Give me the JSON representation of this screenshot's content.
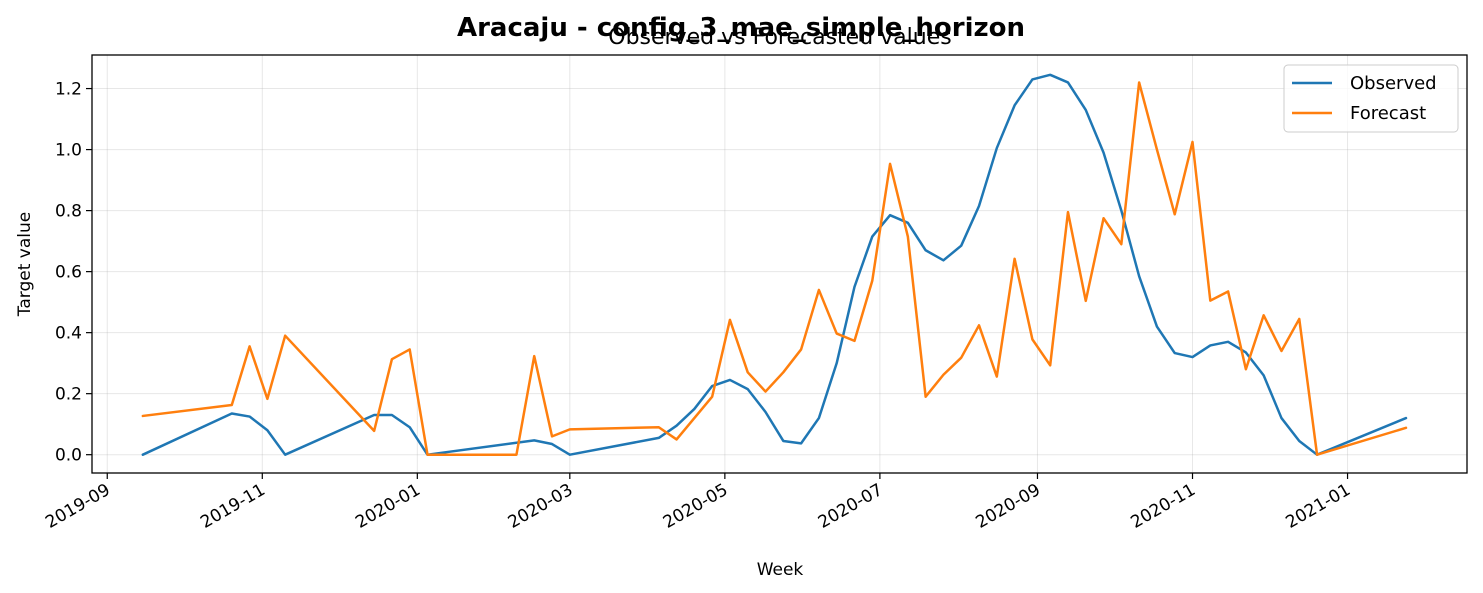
{
  "chart_data": {
    "type": "line",
    "title": "Aracaju - config_3_mae_simple_horizon",
    "subtitle": "Observed vs Forecasted values",
    "xlabel": "Week",
    "ylabel": "Target value",
    "x_tick_labels": [
      "2019-09",
      "2019-11",
      "2020-01",
      "2020-03",
      "2020-05",
      "2020-07",
      "2020-09",
      "2020-11",
      "2021-01"
    ],
    "x_ticks": [
      "2019-09-01",
      "2019-11-01",
      "2020-01-01",
      "2020-03-01",
      "2020-05-01",
      "2020-07-01",
      "2020-09-01",
      "2020-11-01",
      "2021-01-01"
    ],
    "xlim": [
      "2019-08-26",
      "2021-02-17"
    ],
    "y_ticks": [
      0.0,
      0.2,
      0.4,
      0.6,
      0.8,
      1.0,
      1.2
    ],
    "y_tick_labels": [
      "0.0",
      "0.2",
      "0.4",
      "0.6",
      "0.8",
      "1.0",
      "1.2"
    ],
    "ylim": [
      -0.06,
      1.31
    ],
    "grid": true,
    "legend_position": "top-right",
    "series": [
      {
        "name": "Observed",
        "color": "#1f77b4",
        "points": [
          [
            "2019-09-15",
            0.0
          ],
          [
            "2019-10-20",
            0.135
          ],
          [
            "2019-10-27",
            0.125
          ],
          [
            "2019-11-03",
            0.08
          ],
          [
            "2019-11-10",
            0.0
          ],
          [
            "2019-12-15",
            0.13
          ],
          [
            "2019-12-22",
            0.13
          ],
          [
            "2019-12-29",
            0.09
          ],
          [
            "2020-01-05",
            0.0
          ],
          [
            "2020-02-16",
            0.047
          ],
          [
            "2020-02-23",
            0.035
          ],
          [
            "2020-03-01",
            0.0
          ],
          [
            "2020-04-05",
            0.055
          ],
          [
            "2020-04-12",
            0.095
          ],
          [
            "2020-04-19",
            0.15
          ],
          [
            "2020-04-26",
            0.225
          ],
          [
            "2020-05-03",
            0.245
          ],
          [
            "2020-05-10",
            0.215
          ],
          [
            "2020-05-17",
            0.14
          ],
          [
            "2020-05-24",
            0.045
          ],
          [
            "2020-05-31",
            0.037
          ],
          [
            "2020-06-07",
            0.12
          ],
          [
            "2020-06-14",
            0.3
          ],
          [
            "2020-06-21",
            0.55
          ],
          [
            "2020-06-28",
            0.715
          ],
          [
            "2020-07-05",
            0.785
          ],
          [
            "2020-07-12",
            0.76
          ],
          [
            "2020-07-19",
            0.67
          ],
          [
            "2020-07-26",
            0.637
          ],
          [
            "2020-08-02",
            0.685
          ],
          [
            "2020-08-09",
            0.815
          ],
          [
            "2020-08-16",
            1.005
          ],
          [
            "2020-08-23",
            1.145
          ],
          [
            "2020-08-30",
            1.23
          ],
          [
            "2020-09-06",
            1.245
          ],
          [
            "2020-09-13",
            1.22
          ],
          [
            "2020-09-20",
            1.13
          ],
          [
            "2020-09-27",
            0.99
          ],
          [
            "2020-10-04",
            0.8
          ],
          [
            "2020-10-11",
            0.585
          ],
          [
            "2020-10-18",
            0.42
          ],
          [
            "2020-10-25",
            0.333
          ],
          [
            "2020-11-01",
            0.32
          ],
          [
            "2020-11-08",
            0.358
          ],
          [
            "2020-11-15",
            0.37
          ],
          [
            "2020-11-22",
            0.335
          ],
          [
            "2020-11-29",
            0.26
          ],
          [
            "2020-12-06",
            0.12
          ],
          [
            "2020-12-13",
            0.045
          ],
          [
            "2020-12-20",
            0.0
          ],
          [
            "2021-01-24",
            0.12
          ]
        ]
      },
      {
        "name": "Forecast",
        "color": "#ff7f0e",
        "points": [
          [
            "2019-09-15",
            0.127
          ],
          [
            "2019-10-20",
            0.163
          ],
          [
            "2019-10-27",
            0.355
          ],
          [
            "2019-11-03",
            0.183
          ],
          [
            "2019-11-10",
            0.39
          ],
          [
            "2019-12-15",
            0.078
          ],
          [
            "2019-12-22",
            0.313
          ],
          [
            "2019-12-29",
            0.345
          ],
          [
            "2020-01-05",
            0.0
          ],
          [
            "2020-02-09",
            0.0
          ],
          [
            "2020-02-16",
            0.323
          ],
          [
            "2020-02-23",
            0.06
          ],
          [
            "2020-03-01",
            0.083
          ],
          [
            "2020-04-05",
            0.09
          ],
          [
            "2020-04-12",
            0.05
          ],
          [
            "2020-04-26",
            0.19
          ],
          [
            "2020-05-03",
            0.442
          ],
          [
            "2020-05-10",
            0.27
          ],
          [
            "2020-05-17",
            0.207
          ],
          [
            "2020-05-24",
            0.27
          ],
          [
            "2020-05-31",
            0.345
          ],
          [
            "2020-06-07",
            0.54
          ],
          [
            "2020-06-14",
            0.397
          ],
          [
            "2020-06-21",
            0.373
          ],
          [
            "2020-06-28",
            0.57
          ],
          [
            "2020-07-05",
            0.953
          ],
          [
            "2020-07-12",
            0.715
          ],
          [
            "2020-07-19",
            0.19
          ],
          [
            "2020-07-26",
            0.262
          ],
          [
            "2020-08-02",
            0.318
          ],
          [
            "2020-08-09",
            0.424
          ],
          [
            "2020-08-16",
            0.256
          ],
          [
            "2020-08-23",
            0.642
          ],
          [
            "2020-08-30",
            0.378
          ],
          [
            "2020-09-06",
            0.293
          ],
          [
            "2020-09-13",
            0.795
          ],
          [
            "2020-09-20",
            0.504
          ],
          [
            "2020-09-27",
            0.775
          ],
          [
            "2020-10-04",
            0.69
          ],
          [
            "2020-10-11",
            1.22
          ],
          [
            "2020-10-18",
            1.0
          ],
          [
            "2020-10-25",
            0.788
          ],
          [
            "2020-11-01",
            1.025
          ],
          [
            "2020-11-08",
            0.505
          ],
          [
            "2020-11-15",
            0.535
          ],
          [
            "2020-11-22",
            0.28
          ],
          [
            "2020-11-29",
            0.457
          ],
          [
            "2020-12-06",
            0.34
          ],
          [
            "2020-12-13",
            0.445
          ],
          [
            "2020-12-20",
            0.0
          ],
          [
            "2021-01-24",
            0.088
          ]
        ]
      }
    ]
  }
}
